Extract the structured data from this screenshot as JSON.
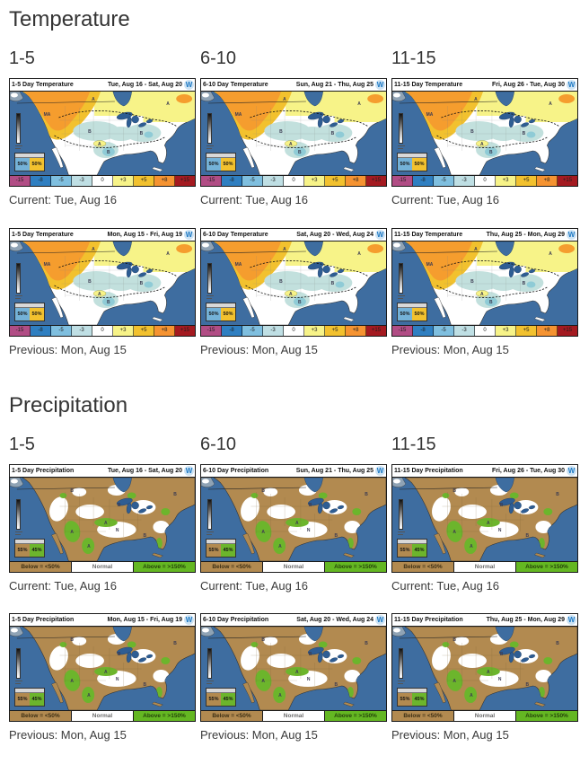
{
  "logo": "W",
  "map_annotations": {
    "above": "A",
    "below": "B",
    "much_above": "MA",
    "normal": "N"
  },
  "probability_box": {
    "temperature": [
      "50%",
      "50%"
    ],
    "precipitation": [
      "55%",
      "45%"
    ]
  },
  "temperature_scale": {
    "labels": [
      "-15",
      "-8",
      "-5",
      "-3",
      "0",
      "+3",
      "+5",
      "+8",
      "+15"
    ],
    "colors": [
      "#b14d85",
      "#2f7fc1",
      "#7fbfdf",
      "#bfdfe4",
      "#ffffff",
      "#f7f388",
      "#f2c12e",
      "#f59331",
      "#a41a20"
    ]
  },
  "precipitation_legend": {
    "items": [
      {
        "label": "Below = <50%",
        "color": "#b28a50",
        "text_color": "#3d2f14"
      },
      {
        "label": "Normal",
        "color": "#ffffff",
        "text_color": "#6b6b6b"
      },
      {
        "label": "Above = >150%",
        "color": "#64b722",
        "text_color": "#24420a"
      }
    ]
  },
  "colors": {
    "ocean": "#3e6da0",
    "temp_warm_orange": "#f59d2e",
    "temp_gold": "#f2c12e",
    "temp_pale_yellow": "#f7f388",
    "temp_cool_teal": "#c2e0dd",
    "precip_below_brown": "#b28a50",
    "precip_above_green": "#6cb52c"
  },
  "sections": [
    {
      "title": "Temperature",
      "type": "temperature",
      "columns": [
        "1-5",
        "6-10",
        "11-15"
      ],
      "rows": [
        {
          "caption": "Current: Tue, Aug 16",
          "maps": [
            {
              "title": "1-5 Day Temperature",
              "date_range": "Tue, Aug 16 - Sat, Aug 20"
            },
            {
              "title": "6-10 Day Temperature",
              "date_range": "Sun, Aug 21 - Thu, Aug 25"
            },
            {
              "title": "11-15 Day Temperature",
              "date_range": "Fri, Aug 26 - Tue, Aug 30"
            }
          ]
        },
        {
          "caption": "Previous: Mon, Aug 15",
          "maps": [
            {
              "title": "1-5 Day Temperature",
              "date_range": "Mon, Aug 15 - Fri, Aug 19"
            },
            {
              "title": "6-10 Day Temperature",
              "date_range": "Sat, Aug 20 - Wed, Aug 24"
            },
            {
              "title": "11-15 Day Temperature",
              "date_range": "Thu, Aug 25 - Mon, Aug 29"
            }
          ]
        }
      ]
    },
    {
      "title": "Precipitation",
      "type": "precipitation",
      "columns": [
        "1-5",
        "6-10",
        "11-15"
      ],
      "rows": [
        {
          "caption": "Current: Tue, Aug 16",
          "maps": [
            {
              "title": "1-5 Day Precipitation",
              "date_range": "Tue, Aug 16 - Sat, Aug 20"
            },
            {
              "title": "6-10 Day Precipitation",
              "date_range": "Sun, Aug 21 - Thu, Aug 25"
            },
            {
              "title": "11-15 Day Precipitation",
              "date_range": "Fri, Aug 26 - Tue, Aug 30"
            }
          ]
        },
        {
          "caption": "Previous: Mon, Aug 15",
          "maps": [
            {
              "title": "1-5 Day Precipitation",
              "date_range": "Mon, Aug 15 - Fri, Aug 19"
            },
            {
              "title": "6-10 Day Precipitation",
              "date_range": "Sat, Aug 20 - Wed, Aug 24"
            },
            {
              "title": "11-15 Day Precipitation",
              "date_range": "Thu, Aug 25 - Mon, Aug 29"
            }
          ]
        }
      ]
    }
  ]
}
